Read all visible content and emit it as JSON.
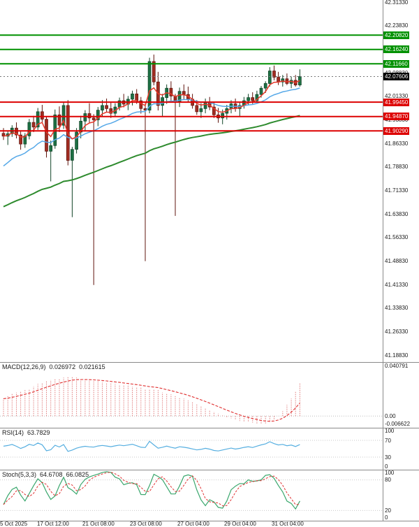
{
  "chart_data": {
    "type": "candlestick",
    "price_ticks": [
      "42.31330",
      "42.23830",
      "42.16330",
      "42.08830",
      "42.01330",
      "41.93830",
      "41.86330",
      "41.78830",
      "41.71330",
      "41.63830",
      "41.56330",
      "41.48830",
      "41.41330",
      "41.33830",
      "41.26330",
      "41.18830"
    ],
    "time_labels": [
      "5 Oct 2025",
      "17 Oct 12:00",
      "21 Oct 08:00",
      "23 Oct 08:00",
      "27 Oct 04:00",
      "29 Oct 04:00",
      "31 Oct 04:00"
    ],
    "levels": {
      "resistance": [
        {
          "label": "42.20820",
          "value": 42.2082
        },
        {
          "label": "42.16240",
          "value": 42.1624
        },
        {
          "label": "42.11660",
          "value": 42.1166
        }
      ],
      "support": [
        {
          "label": "41.99450",
          "value": 41.9945
        },
        {
          "label": "41.94870",
          "value": 41.9487
        },
        {
          "label": "41.90290",
          "value": 41.9029
        }
      ],
      "current": {
        "label": "42.07606",
        "value": 42.07606
      }
    },
    "ohlc": [
      [
        41.895,
        41.912,
        41.874,
        41.886
      ],
      [
        41.886,
        41.901,
        41.858,
        41.894
      ],
      [
        41.894,
        41.921,
        41.884,
        41.912
      ],
      [
        41.912,
        41.93,
        41.879,
        41.89
      ],
      [
        41.89,
        41.901,
        41.843,
        41.861
      ],
      [
        41.861,
        41.896,
        41.849,
        41.887
      ],
      [
        41.887,
        41.941,
        41.876,
        41.93
      ],
      [
        41.93,
        41.951,
        41.899,
        41.915
      ],
      [
        41.915,
        41.976,
        41.906,
        41.964
      ],
      [
        41.964,
        41.986,
        41.929,
        41.94
      ],
      [
        41.94,
        41.949,
        41.818,
        41.838
      ],
      [
        41.838,
        41.872,
        41.742,
        41.856
      ],
      [
        41.856,
        41.971,
        41.846,
        41.954
      ],
      [
        41.954,
        41.981,
        41.899,
        41.921
      ],
      [
        41.921,
        41.996,
        41.909,
        41.984
      ],
      [
        41.984,
        42.001,
        41.793,
        41.809
      ],
      [
        41.809,
        41.852,
        41.628,
        41.844
      ],
      [
        41.844,
        41.912,
        41.831,
        41.899
      ],
      [
        41.899,
        41.951,
        41.879,
        41.934
      ],
      [
        41.934,
        41.969,
        41.901,
        41.958
      ],
      [
        41.958,
        41.991,
        41.928,
        41.944
      ],
      [
        41.944,
        41.956,
        41.412,
        41.938
      ],
      [
        41.938,
        41.979,
        41.918,
        41.969
      ],
      [
        41.969,
        42.001,
        41.949,
        41.984
      ],
      [
        41.984,
        42.006,
        41.963,
        41.974
      ],
      [
        41.974,
        41.994,
        41.944,
        41.959
      ],
      [
        41.959,
        41.991,
        41.948,
        41.979
      ],
      [
        41.979,
        42.009,
        41.968,
        41.999
      ],
      [
        41.999,
        42.021,
        41.978,
        41.988
      ],
      [
        41.988,
        42.014,
        41.969,
        42.004
      ],
      [
        42.004,
        42.031,
        41.984,
        42.021
      ],
      [
        42.021,
        42.036,
        41.989,
        41.999
      ],
      [
        41.999,
        42.011,
        41.958,
        41.974
      ],
      [
        41.974,
        41.991,
        41.488,
        41.969
      ],
      [
        41.969,
        42.136,
        41.959,
        42.124
      ],
      [
        42.124,
        42.146,
        42.048,
        42.059
      ],
      [
        42.059,
        42.091,
        41.968,
        41.984
      ],
      [
        41.984,
        42.021,
        41.949,
        42.009
      ],
      [
        42.009,
        42.051,
        41.989,
        42.039
      ],
      [
        42.039,
        42.061,
        41.999,
        42.014
      ],
      [
        42.014,
        42.021,
        41.632,
        41.994
      ],
      [
        41.994,
        42.041,
        41.979,
        42.029
      ],
      [
        42.029,
        42.051,
        42.004,
        42.019
      ],
      [
        42.019,
        42.044,
        41.994,
        42.004
      ],
      [
        42.004,
        42.021,
        41.974,
        41.984
      ],
      [
        41.984,
        42.001,
        41.954,
        41.964
      ],
      [
        41.964,
        41.991,
        41.944,
        41.974
      ],
      [
        41.974,
        42.006,
        41.959,
        41.994
      ],
      [
        41.994,
        42.011,
        41.969,
        41.979
      ],
      [
        41.979,
        41.996,
        41.944,
        41.954
      ],
      [
        41.954,
        41.976,
        41.929,
        41.944
      ],
      [
        41.944,
        41.971,
        41.924,
        41.959
      ],
      [
        41.959,
        41.986,
        41.939,
        41.974
      ],
      [
        41.974,
        42.001,
        41.959,
        41.989
      ],
      [
        41.989,
        42.006,
        41.964,
        41.974
      ],
      [
        41.974,
        41.996,
        41.949,
        41.984
      ],
      [
        41.984,
        42.011,
        41.974,
        41.999
      ],
      [
        41.999,
        42.021,
        41.984,
        42.009
      ],
      [
        42.009,
        42.026,
        41.989,
        41.999
      ],
      [
        41.999,
        42.031,
        41.994,
        42.019
      ],
      [
        42.019,
        42.046,
        42.009,
        42.039
      ],
      [
        42.039,
        42.061,
        42.024,
        42.054
      ],
      [
        42.054,
        42.106,
        42.044,
        42.094
      ],
      [
        42.094,
        42.111,
        42.064,
        42.074
      ],
      [
        42.074,
        42.091,
        42.049,
        42.059
      ],
      [
        42.059,
        42.081,
        42.044,
        42.069
      ],
      [
        42.069,
        42.086,
        42.049,
        42.054
      ],
      [
        42.054,
        42.076,
        42.039,
        42.064
      ],
      [
        42.064,
        42.081,
        42.044,
        42.049
      ],
      [
        42.049,
        42.099,
        42.044,
        42.07606
      ]
    ],
    "moving_averages": [
      {
        "name": "fast",
        "period": 5
      },
      {
        "name": "medium",
        "period": 18
      },
      {
        "name": "slow",
        "period": 72
      }
    ],
    "indicators": {
      "macd": {
        "name": "MACD(12,26,9)",
        "value_main": "0.026972",
        "value_signal": "0.021615",
        "scale": [
          "0.040791",
          "0.00",
          "-0.006622"
        ],
        "series": [
          0.014,
          0.016,
          0.018,
          0.019,
          0.02,
          0.021,
          0.022,
          0.024,
          0.026,
          0.027,
          0.028,
          0.029,
          0.03,
          0.0305,
          0.031,
          0.0315,
          0.032,
          0.031,
          0.03,
          0.0295,
          0.029,
          0.0285,
          0.028,
          0.0275,
          0.027,
          0.0265,
          0.026,
          0.0255,
          0.025,
          0.0245,
          0.024,
          0.0235,
          0.023,
          0.022,
          0.0215,
          0.022,
          0.021,
          0.019,
          0.018,
          0.0175,
          0.016,
          0.015,
          0.014,
          0.0125,
          0.011,
          0.0095,
          0.008,
          0.0065,
          0.005,
          0.0035,
          0.002,
          0.0005,
          -0.001,
          -0.002,
          -0.003,
          -0.004,
          -0.0045,
          -0.005,
          -0.0055,
          -0.006,
          -0.0066,
          -0.006,
          -0.005,
          -0.003,
          0.0,
          0.004,
          0.009,
          0.014,
          0.02,
          0.026972
        ]
      },
      "rsi": {
        "name": "RSI(14)",
        "value": "63.7829",
        "scale": [
          "100",
          "70",
          "30",
          "0"
        ],
        "levels": [
          70,
          30
        ]
      },
      "stoch": {
        "name": "Stoch(5,3,3)",
        "value_k": "64.6708",
        "value_d": "66.0825",
        "scale": [
          "100",
          "80",
          "20",
          "0"
        ],
        "levels": [
          80,
          20
        ]
      }
    },
    "colors": {
      "bull": "#1d7044",
      "bull_border": "#114427",
      "bear": "#a12c21",
      "bear_border": "#5f140d",
      "ma_fast": "#e8392b",
      "ma_mid": "#55a8e8",
      "ma_slow": "#2e8b2e",
      "resistance": "#009100",
      "support": "#dd0000",
      "current_bg": "#000000",
      "macd_hist": "#e07b7b",
      "macd_signal": "#e03131",
      "rsi_line": "#55aee0",
      "stoch_k": "#3aa76d",
      "stoch_d": "#e03131"
    }
  }
}
